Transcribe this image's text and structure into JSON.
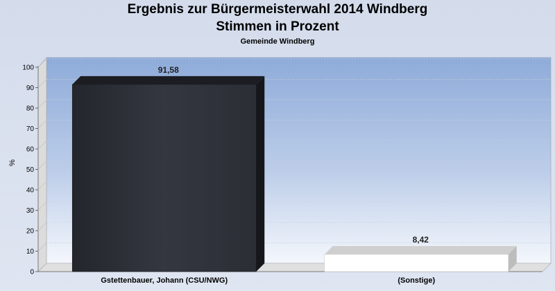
{
  "chart_data": {
    "type": "bar",
    "title": "Ergebnis zur Bürgermeisterwahl 2014 Windberg",
    "subtitle": "Stimmen in Prozent",
    "caption": "Gemeinde Windberg",
    "xlabel": "",
    "ylabel": "%",
    "ylim": [
      0,
      100
    ],
    "yticks": [
      0,
      10,
      20,
      30,
      40,
      50,
      60,
      70,
      80,
      90,
      100
    ],
    "categories": [
      "Gstettenbauer, Johann (CSU/NWG)",
      "(Sonstige)"
    ],
    "values": [
      91.58,
      8.42
    ],
    "value_labels": [
      "91,58",
      "8,42"
    ],
    "bar_colors": [
      "#2e3138",
      "#ffffff"
    ],
    "grid": true
  }
}
